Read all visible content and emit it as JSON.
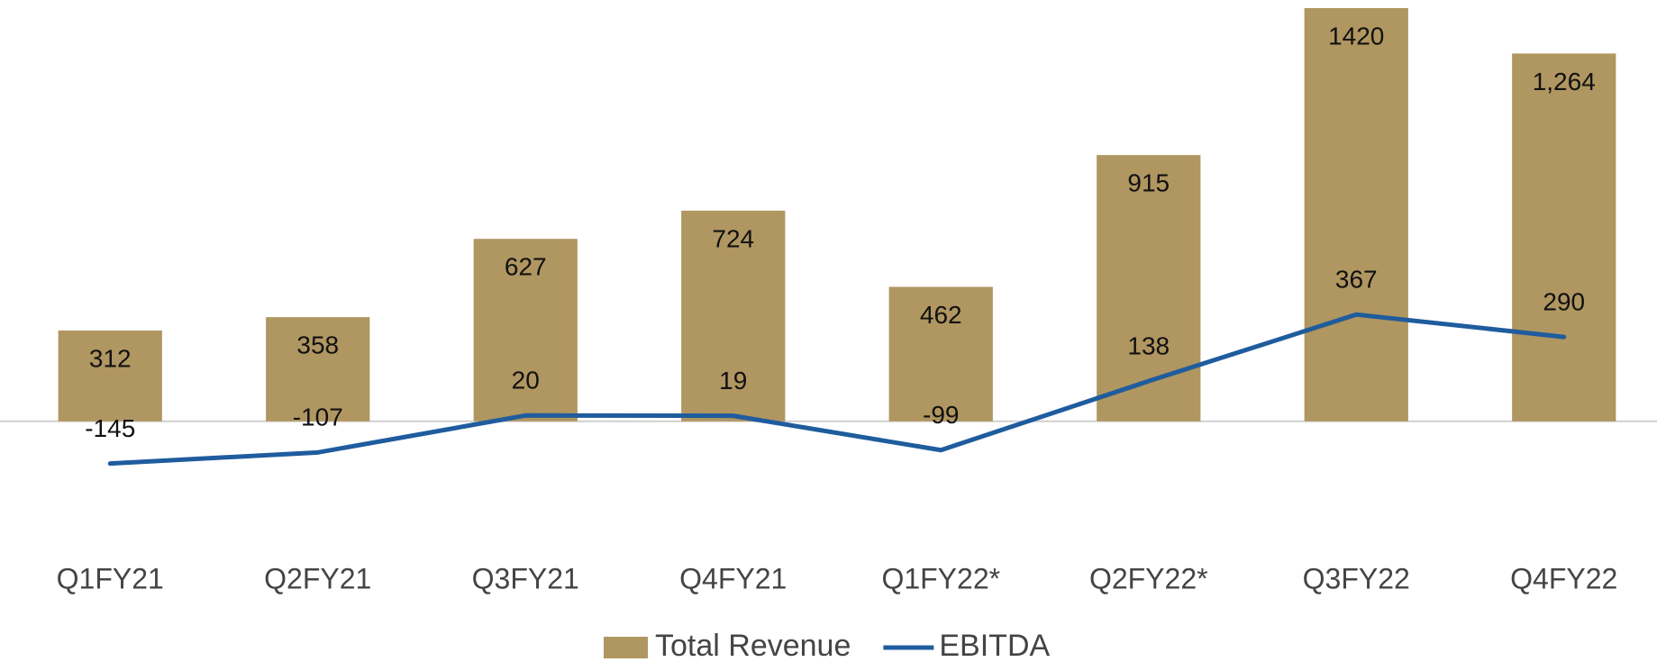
{
  "chart_data": {
    "type": "bar-line",
    "categories": [
      "Q1FY21",
      "Q2FY21",
      "Q3FY21",
      "Q4FY21",
      "Q1FY22*",
      "Q2FY22*",
      "Q3FY22",
      "Q4FY22"
    ],
    "series": [
      {
        "name": "Total Revenue",
        "type": "bar",
        "color": "#b09660",
        "values": [
          312,
          358,
          627,
          724,
          462,
          915,
          1420,
          1264
        ],
        "value_labels": [
          "312",
          "358",
          "627",
          "724",
          "462",
          "915",
          "1420",
          "1,264"
        ]
      },
      {
        "name": "EBITDA",
        "type": "line",
        "color": "#1f5c9e",
        "values": [
          -145,
          -107,
          20,
          19,
          -99,
          138,
          367,
          290
        ]
      }
    ],
    "ylim": [
      -400,
      1420
    ],
    "legend": "bottom"
  }
}
